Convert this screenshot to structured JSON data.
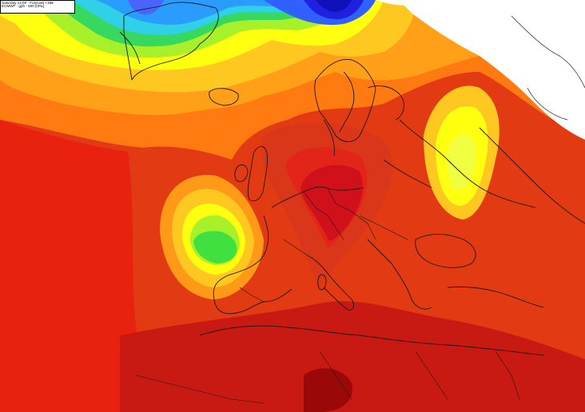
{
  "header": {
    "line1": "Saturday 12:00 · Forecast +168",
    "line2": "ECMWF · gph · 500 [hPa]"
  },
  "map": {
    "field": "500 hPa geopotential height",
    "palette": [
      "#b000b0",
      "#4040ff",
      "#2aa0ff",
      "#30d0e0",
      "#36d080",
      "#40e040",
      "#a0f020",
      "#ffff00",
      "#ffd000",
      "#ffa000",
      "#ff7000",
      "#e84010",
      "#d01010",
      "#a00000"
    ],
    "highlight_colors": {
      "ridge_core": "#d01818",
      "high_dark": "#a00808",
      "trough_green": "#40e040",
      "coastline": "#1a1a1a",
      "no_data": "#ffffff"
    },
    "features": [
      {
        "type": "ridge",
        "area": "Central Europe"
      },
      {
        "type": "cut-off low",
        "area": "Bay of Biscay / off Iberia"
      },
      {
        "type": "trough",
        "area": "Western Russia"
      },
      {
        "type": "trough",
        "area": "Greenland / Norwegian Sea"
      }
    ]
  }
}
